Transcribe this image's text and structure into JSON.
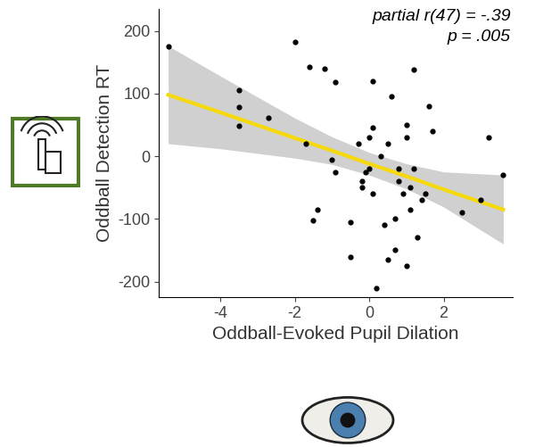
{
  "chart_data": {
    "type": "scatter",
    "x_label": "Oddball-Evoked Pupil Dilation",
    "y_label": "Oddball Detection RT",
    "annotations": [
      "partial r(47) = -.39",
      "p = .005"
    ],
    "x": [
      -5.4,
      -3.5,
      -3.5,
      -3.5,
      -2.7,
      -2.0,
      -1.6,
      -1.7,
      -1.4,
      -1.5,
      -1.2,
      -0.9,
      -1.0,
      -0.9,
      -0.5,
      -0.5,
      -0.3,
      -0.2,
      -0.2,
      -0.1,
      0.0,
      0.0,
      0.1,
      0.1,
      0.2,
      0.1,
      0.3,
      0.4,
      0.5,
      0.5,
      0.6,
      0.7,
      0.7,
      0.8,
      0.8,
      0.9,
      1.0,
      1.0,
      1.0,
      1.1,
      1.1,
      1.2,
      1.2,
      1.3,
      1.5,
      1.6,
      1.7,
      1.4,
      2.5,
      3.0,
      3.2,
      3.6
    ],
    "values": [
      175,
      105,
      78,
      48,
      62,
      183,
      143,
      20,
      -85,
      -102,
      140,
      118,
      -5,
      -25,
      -160,
      -105,
      20,
      -50,
      -40,
      -25,
      -20,
      30,
      45,
      120,
      -210,
      -60,
      0,
      -110,
      -165,
      20,
      95,
      -150,
      -100,
      -40,
      -20,
      -60,
      -175,
      50,
      30,
      -85,
      -50,
      138,
      -20,
      -130,
      -60,
      80,
      40,
      -70,
      -90,
      -70,
      30,
      -30
    ],
    "color": "#000000",
    "marker": "circle",
    "trend": {
      "x": [
        -5.4,
        -4,
        -2,
        -1,
        0,
        1,
        2,
        3.6
      ],
      "values": [
        98,
        70,
        29,
        9,
        -12,
        -32,
        -53,
        -85
      ],
      "color": "#f5d90a"
    },
    "band": {
      "x": [
        -5.4,
        -4,
        -2,
        -1,
        0,
        1,
        2,
        3.6
      ],
      "lower": [
        20,
        12,
        -3,
        -13,
        -30,
        -52,
        -81,
        -140
      ],
      "upper": [
        176,
        128,
        61,
        31,
        6,
        -12,
        -25,
        -30
      ],
      "color": "#d0d0d0"
    },
    "xlim": [
      -5.65,
      3.85
    ],
    "ylim": [
      -225,
      235
    ],
    "xticks": [
      -4,
      -2,
      0,
      2
    ],
    "yticks": [
      -200,
      -100,
      0,
      100,
      200
    ],
    "grid": false
  }
}
